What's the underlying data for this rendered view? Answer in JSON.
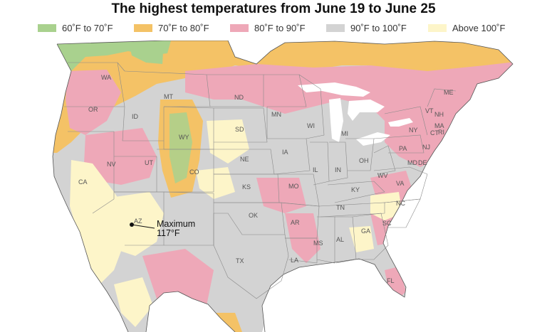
{
  "title": "The highest temperatures from June 19 to June 25",
  "legend": [
    {
      "label": "60˚F to 70˚F",
      "color": "#a9d18e"
    },
    {
      "label": "70˚F to 80˚F",
      "color": "#f4c266"
    },
    {
      "label": "80˚F to 90˚F",
      "color": "#eea8b8"
    },
    {
      "label": "90˚F to 100˚F",
      "color": "#d3d3d3"
    },
    {
      "label": "Above 100˚F",
      "color": "#fdf5c9"
    }
  ],
  "annotation": {
    "line1": "Maximum",
    "line2": "117°F"
  },
  "states": {
    "WA": "WA",
    "OR": "OR",
    "CA": "CA",
    "ID": "ID",
    "NV": "NV",
    "MT": "MT",
    "WY": "WY",
    "UT": "UT",
    "AZ": "AZ",
    "CO": "CO",
    "ND": "ND",
    "SD": "SD",
    "NE": "NE",
    "KS": "KS",
    "OK": "OK",
    "TX": "TX",
    "MN": "MN",
    "IA": "IA",
    "MO": "MO",
    "AR": "AR",
    "LA": "LA",
    "WI": "WI",
    "IL": "IL",
    "MI": "MI",
    "IN": "IN",
    "OH": "OH",
    "KY": "KY",
    "TN": "TN",
    "MS": "MS",
    "AL": "AL",
    "GA": "GA",
    "FL": "FL",
    "SC": "SC",
    "NC": "NC",
    "VA": "VA",
    "WV": "WV",
    "PA": "PA",
    "NY": "NY",
    "VT": "VT",
    "NH": "NH",
    "ME": "ME",
    "MA": "MA",
    "CT": "CT",
    "RI": "RI",
    "NJ": "NJ",
    "DE": "DE",
    "MD": "MD"
  }
}
